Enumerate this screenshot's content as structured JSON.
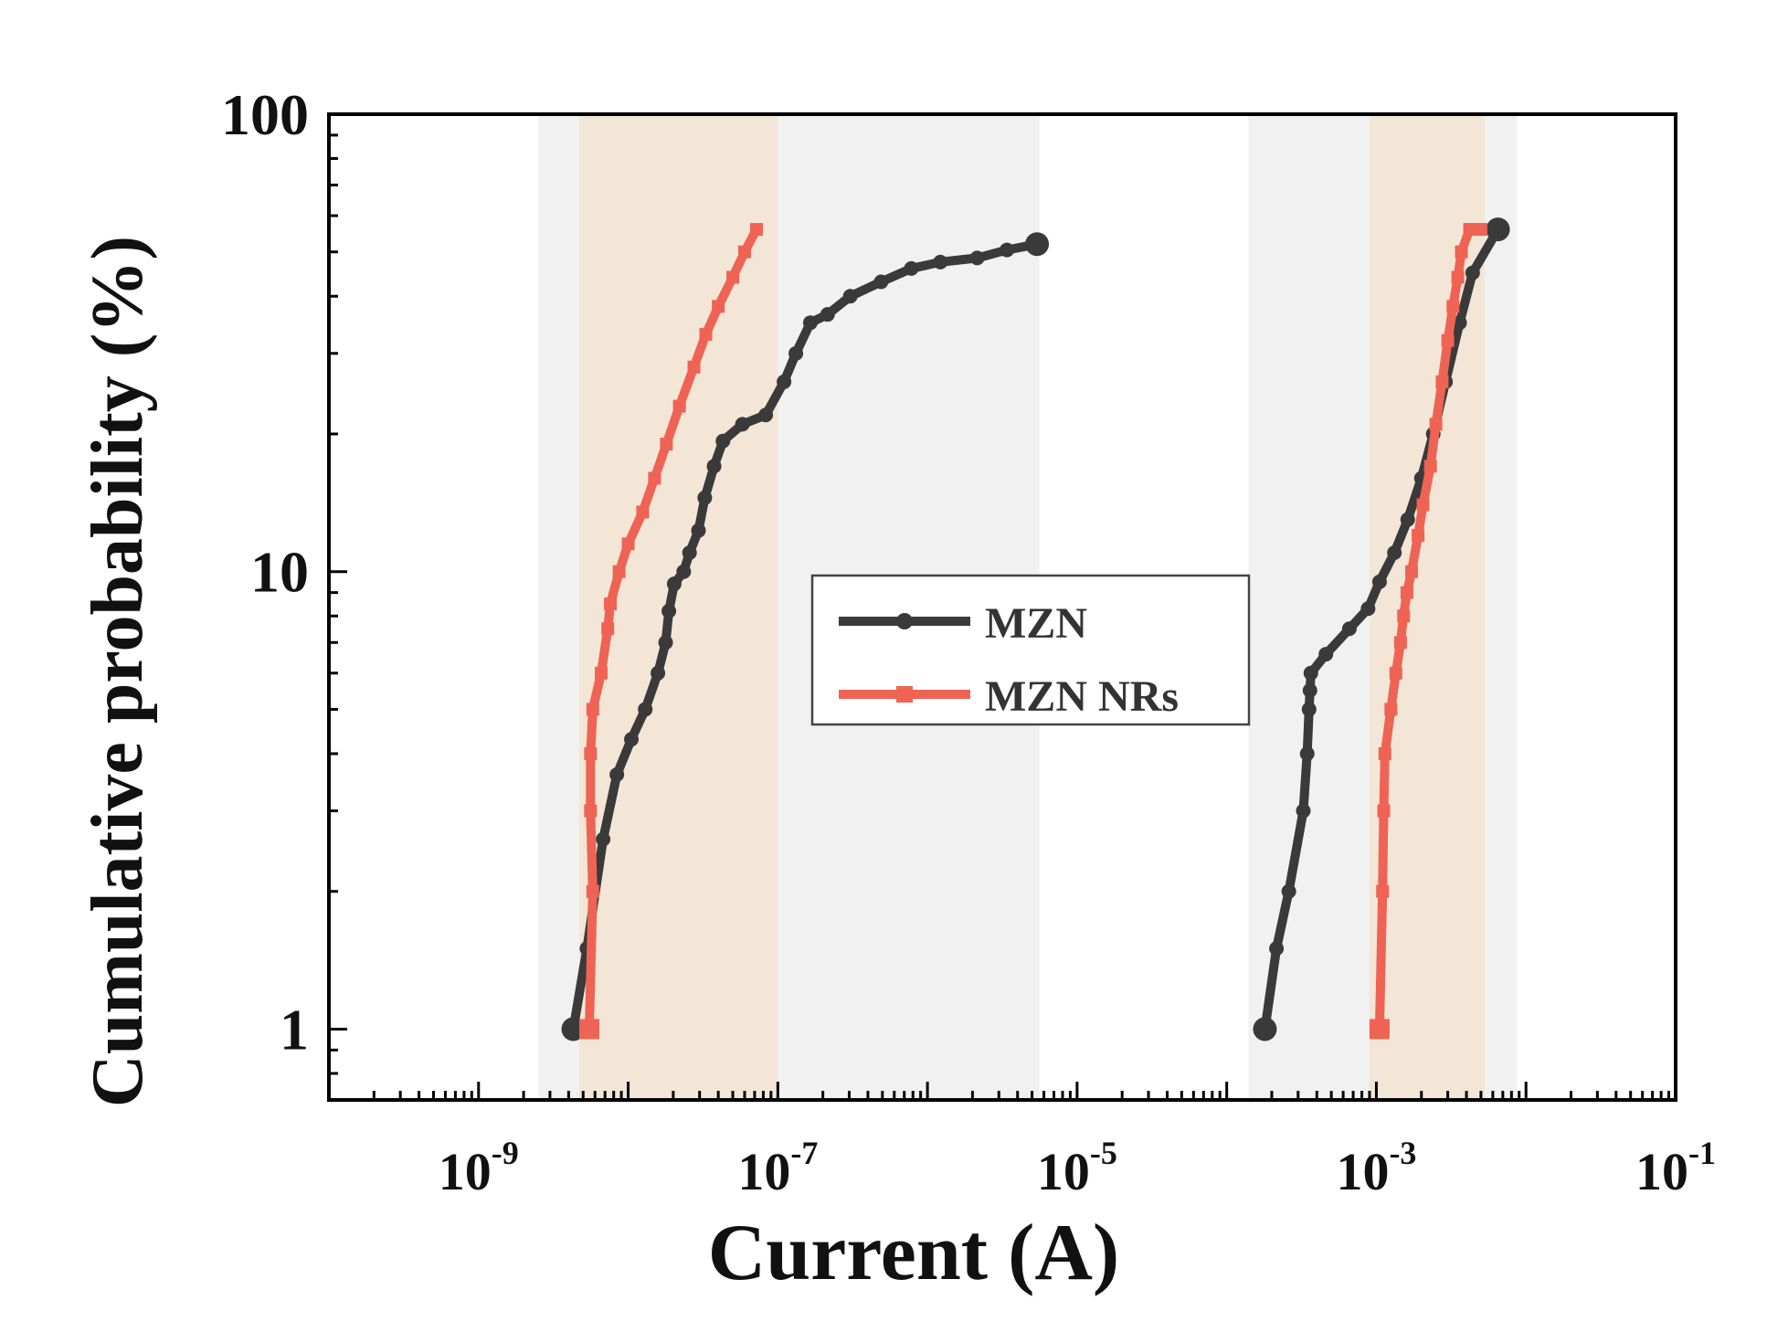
{
  "chart_data": {
    "type": "line",
    "title": "",
    "xlabel": "Current (A)",
    "ylabel": "Cumulative probability (%)",
    "x_scale": "log",
    "y_scale": "log",
    "xlim": [
      1e-10,
      0.1
    ],
    "ylim": [
      0.7,
      100
    ],
    "x_ticks": [
      {
        "value": 1e-09,
        "base": "10",
        "exp": "-9"
      },
      {
        "value": 1e-07,
        "base": "10",
        "exp": "-7"
      },
      {
        "value": 1e-05,
        "base": "10",
        "exp": "-5"
      },
      {
        "value": 0.001,
        "base": "10",
        "exp": "-3"
      },
      {
        "value": 0.1,
        "base": "10",
        "exp": "-1"
      }
    ],
    "y_ticks": [
      {
        "value": 1,
        "label": "1"
      },
      {
        "value": 10,
        "label": "10"
      },
      {
        "value": 100,
        "label": "100"
      }
    ],
    "shaded_regions": [
      {
        "x": [
          2.5e-09,
          1e-07
        ],
        "color": "#f1f1f1",
        "layer": "grey"
      },
      {
        "x": [
          1e-07,
          5.6e-06
        ],
        "color": "#f1f1f1",
        "layer": "grey"
      },
      {
        "x": [
          0.00014,
          0.0087
        ],
        "color": "#f1f1f1",
        "layer": "grey"
      },
      {
        "x": [
          4.7e-09,
          1e-07
        ],
        "color": "#f3e6d7",
        "layer": "tan"
      },
      {
        "x": [
          0.0009,
          0.0053
        ],
        "color": "#f3e6d7",
        "layer": "tan"
      }
    ],
    "series": [
      {
        "name": "MZN",
        "color": "#3a3a3a",
        "marker": "circle",
        "groups": [
          {
            "x": [
              4.3e-09,
              5.3e-09,
              6.8e-09,
              8.4e-09,
              1.05e-08,
              1.3e-08,
              1.58e-08,
              1.78e-08,
              1.87e-08,
              2.03e-08,
              2.35e-08,
              2.57e-08,
              2.95e-08,
              3.25e-08,
              3.75e-08,
              4.3e-08,
              5.8e-08,
              8.3e-08,
              1.1e-07,
              1.32e-07,
              1.65e-07,
              2.15e-07,
              3.05e-07,
              4.9e-07,
              7.8e-07,
              1.22e-06,
              2.15e-06,
              3.4e-06,
              5.4e-06
            ],
            "y": [
              1.0,
              1.5,
              2.6,
              3.6,
              4.3,
              5.0,
              6.0,
              7.0,
              8.2,
              9.4,
              10.0,
              11.0,
              12.3,
              14.5,
              17.0,
              19.3,
              21.0,
              22.0,
              26.0,
              30.0,
              35.0,
              36.5,
              40.0,
              43.0,
              46.0,
              47.5,
              48.5,
              50.5,
              52.0
            ]
          },
          {
            "x": [
              0.00018,
              0.000215,
              0.00026,
              0.000325,
              0.000345,
              0.000355,
              0.00036,
              0.000365,
              0.00046,
              0.00066,
              0.00088,
              0.00105,
              0.00132,
              0.00162,
              0.002,
              0.0024,
              0.0029,
              0.0036,
              0.0044,
              0.0065
            ],
            "y": [
              1.0,
              1.5,
              2.0,
              3.0,
              4.0,
              5.0,
              5.5,
              6.0,
              6.6,
              7.5,
              8.3,
              9.5,
              11.0,
              13.0,
              16.0,
              20.0,
              26.0,
              35.0,
              45.0,
              56.0
            ]
          }
        ]
      },
      {
        "name": "MZN NRs",
        "color": "#ef6355",
        "marker": "square",
        "groups": [
          {
            "x": [
              5.5e-09,
              5.8e-09,
              5.6e-09,
              5.6e-09,
              5.8e-09,
              6.6e-09,
              7.3e-09,
              7.6e-09,
              8.7e-09,
              1e-08,
              1.25e-08,
              1.5e-08,
              1.8e-08,
              2.2e-08,
              2.75e-08,
              3.3e-08,
              4e-08,
              5e-08,
              6e-08,
              7.2e-08
            ],
            "y": [
              1.0,
              2.0,
              3.0,
              4.0,
              5.0,
              6.0,
              7.5,
              8.5,
              10.0,
              11.5,
              13.5,
              16.0,
              19.0,
              23.0,
              28.0,
              33.0,
              38.0,
              44.0,
              50.0,
              56.0
            ]
          },
          {
            "x": [
              0.00105,
              0.0011,
              0.00112,
              0.00114,
              0.00125,
              0.00135,
              0.00145,
              0.00152,
              0.0016,
              0.00172,
              0.0019,
              0.00205,
              0.0023,
              0.0025,
              0.00275,
              0.003,
              0.00325,
              0.0035,
              0.0037,
              0.0042,
              0.005
            ],
            "y": [
              1.0,
              2.0,
              3.0,
              4.0,
              5.0,
              6.0,
              7.0,
              8.0,
              9.0,
              10.0,
              12.0,
              14.0,
              17.0,
              21.0,
              26.0,
              32.0,
              38.0,
              44.0,
              50.0,
              56.0,
              56.0
            ]
          }
        ]
      }
    ],
    "legend": {
      "position": "center",
      "entries": [
        "MZN",
        "MZN NRs"
      ]
    }
  }
}
